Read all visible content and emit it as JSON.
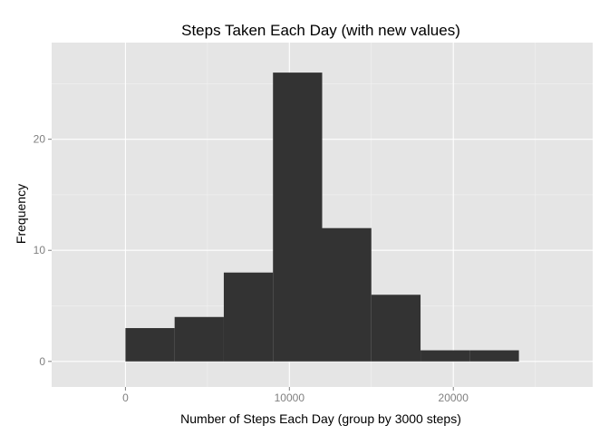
{
  "chart_data": {
    "type": "bar",
    "title": "Steps Taken Each Day (with new values)",
    "xlabel": "Number of Steps Each Day (group by 3000 steps)",
    "ylabel": "Frequency",
    "bin_width": 3000,
    "bins": [
      {
        "x_start": 0,
        "x_end": 3000,
        "count": 3
      },
      {
        "x_start": 3000,
        "x_end": 6000,
        "count": 4
      },
      {
        "x_start": 6000,
        "x_end": 9000,
        "count": 8
      },
      {
        "x_start": 9000,
        "x_end": 12000,
        "count": 26
      },
      {
        "x_start": 12000,
        "x_end": 15000,
        "count": 12
      },
      {
        "x_start": 15000,
        "x_end": 18000,
        "count": 6
      },
      {
        "x_start": 18000,
        "x_end": 21000,
        "count": 1
      },
      {
        "x_start": 21000,
        "x_end": 24000,
        "count": 1
      }
    ],
    "xlim": [
      -4500,
      28500
    ],
    "ylim": [
      -2.3,
      28.7
    ],
    "x_ticks": [
      0,
      10000,
      20000
    ],
    "x_tick_labels": [
      "0",
      "10000",
      "20000"
    ],
    "y_ticks": [
      0,
      10,
      20
    ],
    "y_tick_labels": [
      "0",
      "10",
      "20"
    ],
    "grid": true,
    "colors": {
      "panel_background": "#e5e5e5",
      "grid_major": "#ffffff",
      "grid_minor": "#f2f2f2",
      "bar_fill": "#333333",
      "tick_color": "#7f7f7f"
    }
  }
}
